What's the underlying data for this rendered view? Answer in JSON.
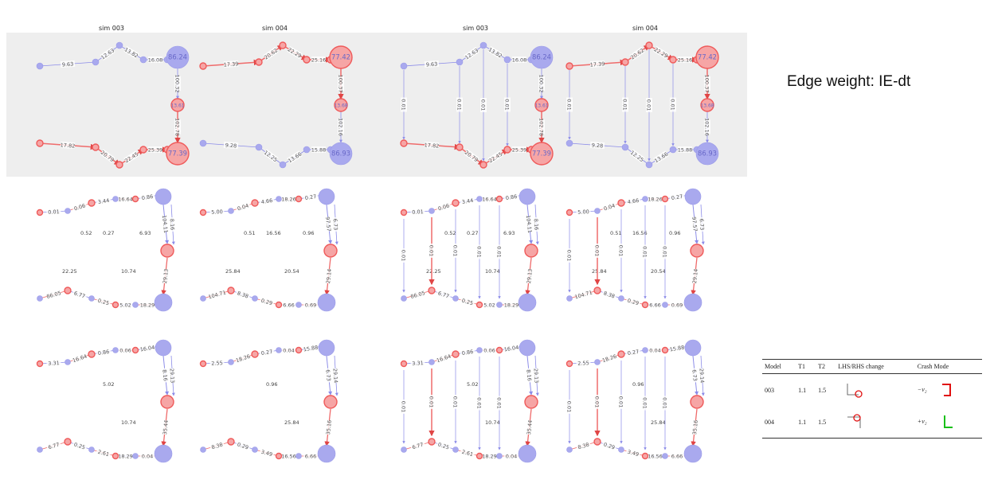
{
  "titles": [
    "sim 003",
    "sim 004",
    "sim 003",
    "sim 004"
  ],
  "heading": "Edge weight: IE-dt",
  "colors": {
    "blue": "#8c8ce8",
    "red": "#ef6b6b",
    "band": "#eeeeee"
  },
  "top": {
    "sim003": {
      "upper_edges": [
        "9.63",
        "12.63",
        "13.82",
        "16.08",
        "100.32"
      ],
      "upper_nodes": [
        "86.24",
        "13.61"
      ],
      "lower_edges": [
        "17.82",
        "20.79",
        "22.45",
        "25.39",
        "102.78"
      ],
      "lower_nodes": [
        "77.39"
      ]
    },
    "sim004": {
      "upper_edges": [
        "17.39",
        "20.62",
        "22.29",
        "25.16",
        "100.37"
      ],
      "upper_nodes": [
        "77.42",
        "13.68"
      ],
      "lower_edges": [
        "9.28",
        "12.25",
        "13.66",
        "15.88",
        "102.16"
      ],
      "lower_nodes": [
        "86.93"
      ]
    },
    "cross_edge": "0.01"
  },
  "mid": {
    "sim003": {
      "labels": [
        "0.01",
        "0.06",
        "3.44",
        "16.64",
        "0.86",
        "104.11",
        "8.16",
        "29.13",
        "86.05",
        "6.77",
        "0.25",
        "5.02",
        "18.29",
        "0.27",
        "10.74",
        "6.93",
        "22.25",
        "0.52"
      ]
    },
    "sim004": {
      "labels": [
        "5.00",
        "0.04",
        "4.66",
        "18.26",
        "0.27",
        "97.57",
        "6.73",
        "29.14",
        "104.71",
        "8.38",
        "0.29",
        "6.66",
        "0.69",
        "16.56",
        "20.54",
        "0.96",
        "25.84",
        "0.51"
      ]
    }
  },
  "bot": {
    "sim003": {
      "labels": [
        "3.31",
        "16.64",
        "0.86",
        "0.06",
        "16.04",
        "8.16",
        "29.13",
        "35.44",
        "6.77",
        "0.25",
        "2.61",
        "18.29",
        "0.04",
        "5.02",
        "10.74"
      ]
    },
    "sim004": {
      "labels": [
        "2.55",
        "18.26",
        "0.27",
        "0.04",
        "15.88",
        "6.73",
        "29.14",
        "35.16",
        "8.38",
        "0.29",
        "3.49",
        "16.56",
        "6.66",
        "0.96",
        "25.84"
      ]
    }
  },
  "table": {
    "headers": [
      "Model",
      "T1",
      "T2",
      "LHS/RHS change",
      "Crash Mode"
    ],
    "rows": [
      {
        "model": "003",
        "t1": "1.1",
        "t2": "1.5",
        "crash": "−v₂"
      },
      {
        "model": "004",
        "t1": "1.1",
        "t2": "1.5",
        "crash": "+v₂"
      }
    ]
  }
}
